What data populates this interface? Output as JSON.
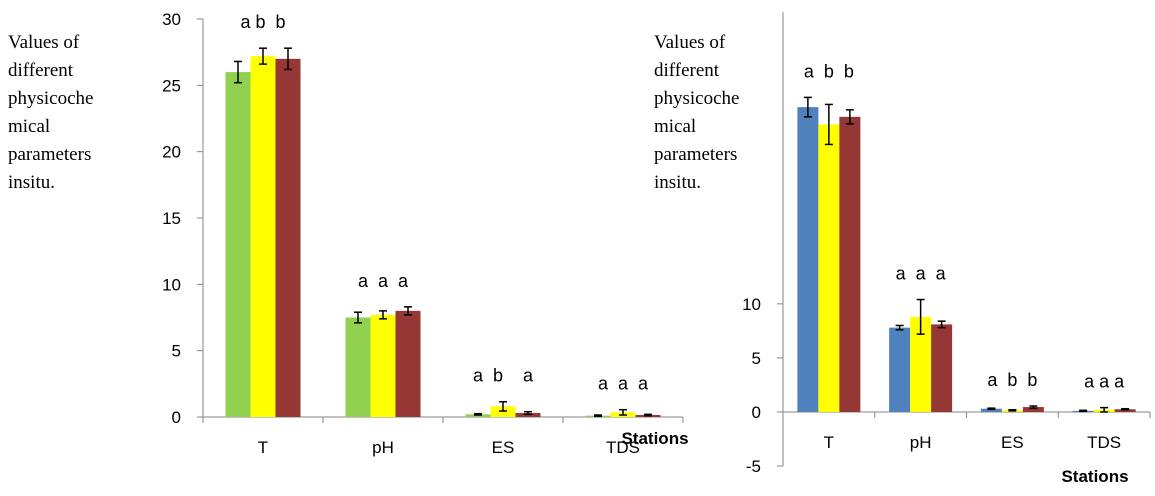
{
  "chart_data": [
    {
      "type": "bar",
      "ylabel": [
        "Values of",
        "different",
        "physicoche",
        "mical",
        "parameters",
        "insitu."
      ],
      "xlabel": "Stations",
      "categories": [
        "T",
        "pH",
        "ES",
        "TDS"
      ],
      "series": [
        {
          "color": "#92d050",
          "values": [
            26,
            7.5,
            0.2,
            0.1
          ],
          "errors": [
            0.8,
            0.4,
            0.05,
            0.05
          ]
        },
        {
          "color": "#ffff00",
          "values": [
            27.2,
            7.7,
            0.8,
            0.35
          ],
          "errors": [
            0.6,
            0.3,
            0.35,
            0.2
          ]
        },
        {
          "color": "#953735",
          "values": [
            27,
            8.0,
            0.3,
            0.15
          ],
          "errors": [
            0.8,
            0.3,
            0.1,
            0.05
          ]
        }
      ],
      "annotations": [
        "a b  b",
        "a  a  a",
        "a  b    a",
        "a  a  a"
      ],
      "ylim": [
        0,
        30
      ],
      "yticks": [
        0,
        5,
        10,
        15,
        20,
        25,
        30
      ]
    },
    {
      "type": "bar",
      "ylabel": [
        "Values of",
        "different",
        "physicoche",
        "mical",
        "parameters",
        "insitu."
      ],
      "xlabel": "Stations",
      "categories": [
        "T",
        "pH",
        "ES",
        "TDS"
      ],
      "series": [
        {
          "color": "#4f81bd",
          "values": [
            28.2,
            7.8,
            0.3,
            0.1
          ],
          "errors": [
            0.9,
            0.2,
            0.05,
            0.05
          ]
        },
        {
          "color": "#ffff00",
          "values": [
            26.6,
            8.8,
            0.15,
            0.2
          ],
          "errors": [
            1.85,
            1.6,
            0.05,
            0.2
          ]
        },
        {
          "color": "#953735",
          "values": [
            27.3,
            8.1,
            0.45,
            0.25
          ],
          "errors": [
            0.65,
            0.3,
            0.1,
            0.05
          ]
        }
      ],
      "annotations": [
        "a  b  b",
        "a  a  a",
        "a  b  b",
        "a a a"
      ],
      "ylim": [
        -5,
        37
      ],
      "yticks": [
        -5,
        0,
        5,
        10
      ]
    }
  ]
}
